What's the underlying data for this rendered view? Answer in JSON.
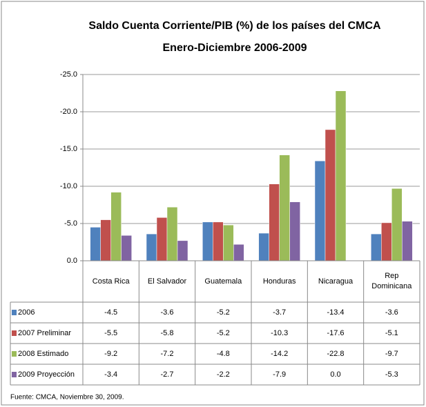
{
  "chart_data": {
    "type": "bar",
    "title": "Saldo Cuenta Corriente/PIB (%) de los países del CMCA",
    "subtitle": "Enero-Diciembre 2006-2009",
    "source": "Fuente: CMCA, Noviembre 30, 2009.",
    "categories": [
      "Costa Rica",
      "El Salvador",
      "Guatemala",
      "Honduras",
      "Nicaragua",
      "Rep Dominicana"
    ],
    "series": [
      {
        "name": "2006",
        "color": "#4f81bd",
        "values": [
          -4.5,
          -3.6,
          -5.2,
          -3.7,
          -13.4,
          -3.6
        ]
      },
      {
        "name": "2007 Preliminar",
        "color": "#c0504d",
        "values": [
          -5.5,
          -5.8,
          -5.2,
          -10.3,
          -17.6,
          -5.1
        ]
      },
      {
        "name": "2008 Estimado",
        "color": "#9bbb59",
        "values": [
          -9.2,
          -7.2,
          -4.8,
          -14.2,
          -22.8,
          -9.7
        ]
      },
      {
        "name": "2009 Proyección",
        "color": "#8064a2",
        "values": [
          -3.4,
          -2.7,
          -2.2,
          -7.9,
          0,
          -5.3
        ],
        "value_labels": [
          "-3.4",
          "-2.7",
          "-2.2",
          "-7.9",
          "0.0",
          "-5.3"
        ]
      }
    ],
    "ylim": [
      0,
      -25
    ],
    "yticks": [
      {
        "value": -25,
        "label": "-25.0"
      },
      {
        "value": -20,
        "label": "-20.0"
      },
      {
        "value": -15,
        "label": "-15.0"
      },
      {
        "value": -10,
        "label": "-10.0"
      },
      {
        "value": -5,
        "label": "-5.0"
      },
      {
        "value": 0,
        "label": "0.0"
      }
    ],
    "grid": true
  }
}
